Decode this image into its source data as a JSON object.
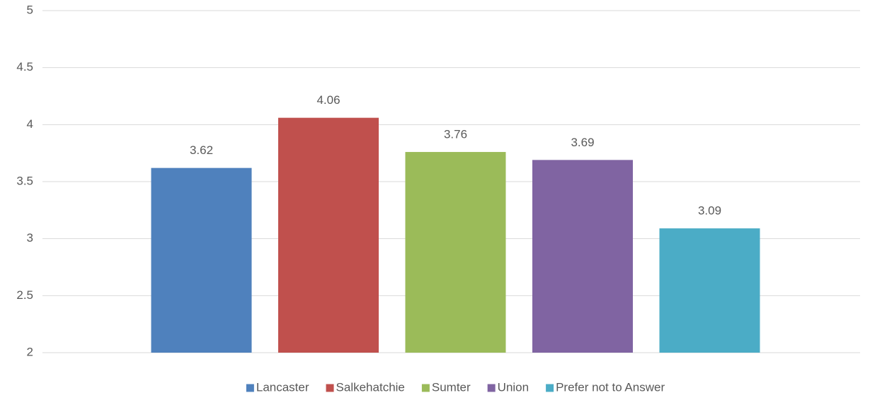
{
  "chart_data": {
    "type": "bar",
    "categories": [
      null
    ],
    "series": [
      {
        "name": "Lancaster",
        "color": "#4f81bd",
        "values": [
          3.62
        ]
      },
      {
        "name": "Salkehatchie",
        "color": "#c0504d",
        "values": [
          4.06
        ]
      },
      {
        "name": "Sumter",
        "color": "#9bbb59",
        "values": [
          3.76
        ]
      },
      {
        "name": "Union",
        "color": "#8064a2",
        "values": [
          3.69
        ]
      },
      {
        "name": "Prefer not to Answer",
        "color": "#4bacc6",
        "values": [
          3.09
        ]
      }
    ],
    "ylim": [
      2,
      5
    ],
    "yticks": [
      2,
      2.5,
      3,
      3.5,
      4,
      4.5,
      5
    ],
    "grid": true,
    "legend": "bottom",
    "data_labels": true
  }
}
